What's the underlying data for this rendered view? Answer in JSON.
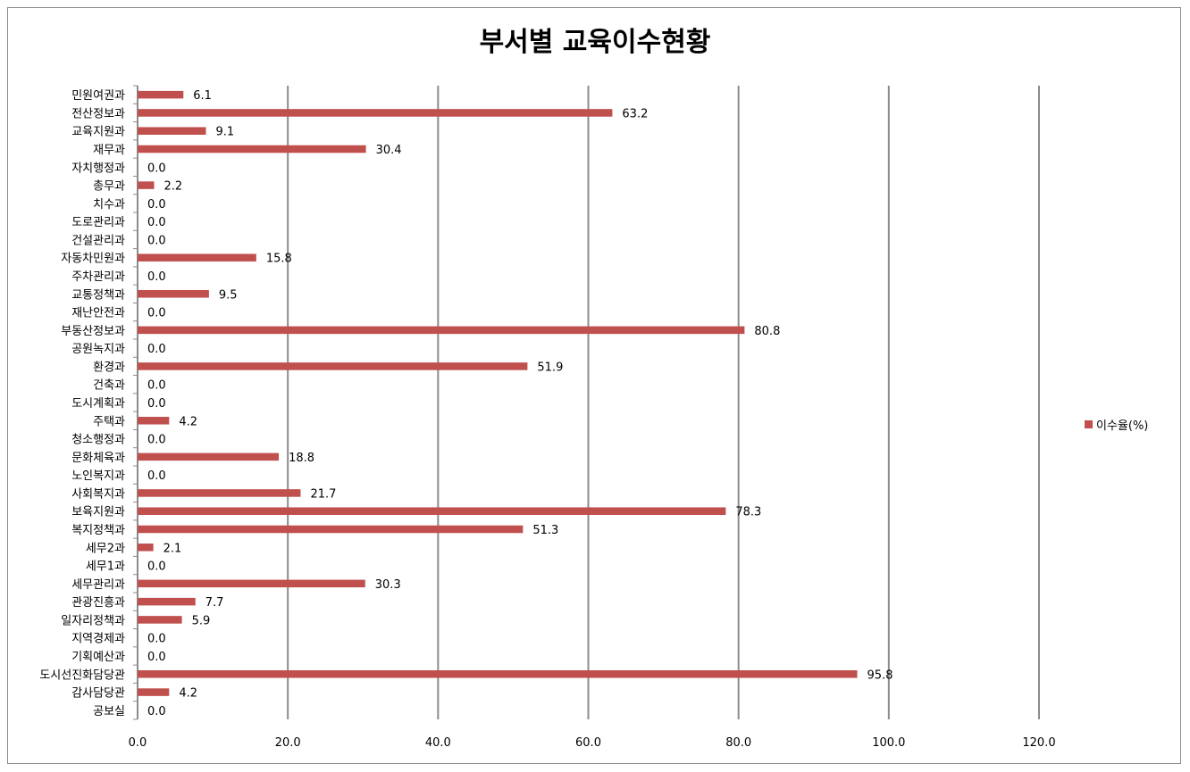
{
  "chart_data": {
    "type": "bar",
    "orientation": "horizontal",
    "title": "부서별 교육이수현황",
    "xlabel": "",
    "ylabel": "",
    "xlim": [
      0,
      120
    ],
    "x_ticks": [
      "0.0",
      "20.0",
      "40.0",
      "60.0",
      "80.0",
      "100.0",
      "120.0"
    ],
    "grid": true,
    "legend_position": "right",
    "bar_color": "#c0504d",
    "categories": [
      "민원여권과",
      "전산정보과",
      "교육지원과",
      "재무과",
      "자치행정과",
      "총무과",
      "치수과",
      "도로관리과",
      "건설관리과",
      "자동차민원과",
      "주차관리과",
      "교통정책과",
      "재난안전과",
      "부동산정보과",
      "공원녹지과",
      "환경과",
      "건축과",
      "도시계획과",
      "주택과",
      "청소행정과",
      "문화체육과",
      "노인복지과",
      "사회복지과",
      "보육지원과",
      "복지정책과",
      "세무2과",
      "세무1과",
      "세무관리과",
      "관광진흥과",
      "일자리정책과",
      "지역경제과",
      "기획예산과",
      "도시선진화담당관",
      "감사담당관",
      "공보실"
    ],
    "series": [
      {
        "name": "이수율(%)",
        "values": [
          6.1,
          63.2,
          9.1,
          30.4,
          0.0,
          2.2,
          0.0,
          0.0,
          0.0,
          15.8,
          0.0,
          9.5,
          0.0,
          80.8,
          0.0,
          51.9,
          0.0,
          0.0,
          4.2,
          0.0,
          18.8,
          0.0,
          21.7,
          78.3,
          51.3,
          2.1,
          0.0,
          30.3,
          7.7,
          5.9,
          0.0,
          0.0,
          95.8,
          4.2,
          0.0
        ],
        "labels": [
          "6.1",
          "63.2",
          "9.1",
          "30.4",
          "0.0",
          "2.2",
          "0.0",
          "0.0",
          "0.0",
          "15.8",
          "0.0",
          "9.5",
          "0.0",
          "80.8",
          "0.0",
          "51.9",
          "0.0",
          "0.0",
          "4.2",
          "0.0",
          "18.8",
          "0.0",
          "21.7",
          "78.3",
          "51.3",
          "2.1",
          "0.0",
          "30.3",
          "7.7",
          "5.9",
          "0.0",
          "0.0",
          "95.8",
          "4.2",
          "0.0"
        ]
      }
    ]
  }
}
